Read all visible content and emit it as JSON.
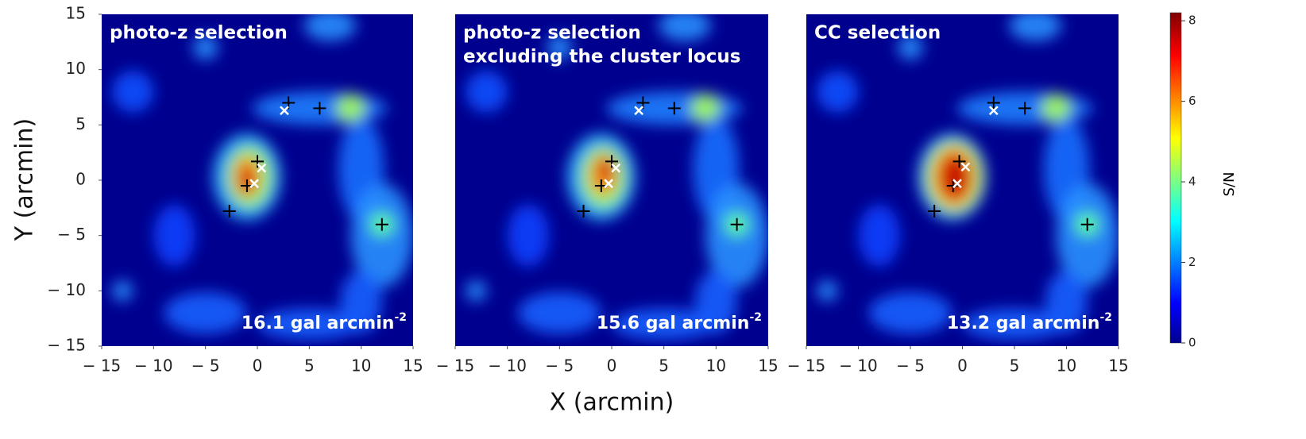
{
  "chart_data": [
    {
      "type": "heatmap",
      "title_lines": [
        "photo-z selection"
      ],
      "ylabel": "Y (arcmin)",
      "annotation": {
        "text": "16.1 gal arcmin",
        "superscript": "-2"
      },
      "xlim": [
        -15,
        15
      ],
      "ylim": [
        -15,
        15
      ],
      "xticks": [
        {
          "value": -15,
          "label": "− 15"
        },
        {
          "value": -10,
          "label": "− 10"
        },
        {
          "value": -5,
          "label": "− 5"
        },
        0,
        5,
        10,
        15
      ],
      "yticks": [
        {
          "value": -15,
          "label": "− 15"
        },
        {
          "value": -10,
          "label": "− 10"
        },
        {
          "value": -5,
          "label": "− 5"
        },
        0,
        5,
        10,
        15
      ],
      "plus_markers": {
        "color": "#000000",
        "x": [
          3,
          6,
          0,
          -1,
          -2.7,
          12
        ],
        "y": [
          7,
          6.5,
          1.7,
          -0.5,
          -2.8,
          -4
        ]
      },
      "cross_markers": {
        "color": "#ffffff",
        "x": [
          2.6,
          0.4,
          -0.3
        ],
        "y": [
          6.3,
          1.1,
          -0.3
        ]
      }
    },
    {
      "type": "heatmap",
      "title_lines": [
        "photo-z selection",
        "excluding the cluster  locus"
      ],
      "xlabel": "X (arcmin)",
      "annotation": {
        "text": "15.6 gal arcmin",
        "superscript": "-2"
      },
      "xlim": [
        -15,
        15
      ],
      "ylim": [
        -15,
        15
      ],
      "xticks": [
        {
          "value": -15,
          "label": "− 15"
        },
        {
          "value": -10,
          "label": "− 10"
        },
        {
          "value": -5,
          "label": "− 5"
        },
        0,
        5,
        10,
        15
      ],
      "plus_markers": {
        "color": "#000000",
        "x": [
          3,
          6,
          0,
          -1,
          -2.7,
          12
        ],
        "y": [
          7,
          6.5,
          1.7,
          -0.5,
          -2.8,
          -4
        ]
      },
      "cross_markers": {
        "color": "#ffffff",
        "x": [
          2.6,
          0.4,
          -0.3
        ],
        "y": [
          6.3,
          1.1,
          -0.3
        ]
      }
    },
    {
      "type": "heatmap",
      "title_lines": [
        "CC selection"
      ],
      "annotation": {
        "text": "13.2 gal arcmin",
        "superscript": "-2"
      },
      "xlim": [
        -15,
        15
      ],
      "ylim": [
        -15,
        15
      ],
      "xticks": [
        {
          "value": -15,
          "label": "− 15"
        },
        {
          "value": -10,
          "label": "− 10"
        },
        {
          "value": -5,
          "label": "− 5"
        },
        0,
        5,
        10,
        15
      ],
      "plus_markers": {
        "color": "#000000",
        "x": [
          3,
          6,
          -0.3,
          -0.9,
          -2.7,
          12
        ],
        "y": [
          7,
          6.5,
          1.7,
          -0.5,
          -2.8,
          -4
        ]
      },
      "cross_markers": {
        "color": "#ffffff",
        "x": [
          3,
          0.3,
          -0.5
        ],
        "y": [
          6.3,
          1.2,
          -0.3
        ]
      }
    },
    {
      "type": "colorbar",
      "label": "S/N",
      "ylim": [
        0,
        8.2
      ],
      "yticks": [
        0,
        2,
        4,
        6,
        8
      ]
    }
  ]
}
